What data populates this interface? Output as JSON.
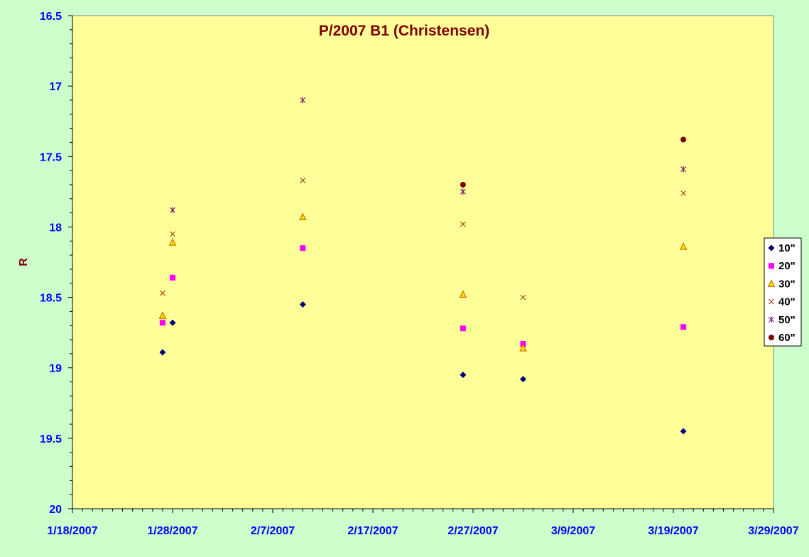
{
  "chart_data": {
    "type": "scatter",
    "title": "P/2007 B1 (Christensen)",
    "xlabel": "",
    "ylabel": "R",
    "x_axis": {
      "type": "date",
      "min": "2007-01-18",
      "max": "2007-03-29",
      "major_ticks": [
        "1/18/2007",
        "1/28/2007",
        "2/7/2007",
        "2/17/2007",
        "2/27/2007",
        "3/9/2007",
        "3/19/2007",
        "3/29/2007"
      ]
    },
    "y_axis": {
      "reversed": true,
      "min": 16.5,
      "max": 20,
      "major_ticks": [
        "16.5",
        "17",
        "17.5",
        "18",
        "18.5",
        "19",
        "19.5",
        "20"
      ]
    },
    "grid": false,
    "legend_position": "right",
    "series": [
      {
        "name": "10\"",
        "marker": "diamond",
        "color": "#000080",
        "points": [
          {
            "x": "2007-01-27",
            "y": 18.89
          },
          {
            "x": "2007-01-28",
            "y": 18.68
          },
          {
            "x": "2007-02-10",
            "y": 18.55
          },
          {
            "x": "2007-02-26",
            "y": 19.05
          },
          {
            "x": "2007-03-04",
            "y": 19.08
          },
          {
            "x": "2007-03-20",
            "y": 19.45
          }
        ]
      },
      {
        "name": "20\"",
        "marker": "square",
        "color": "#ff00ff",
        "points": [
          {
            "x": "2007-01-27",
            "y": 18.68
          },
          {
            "x": "2007-01-28",
            "y": 18.36
          },
          {
            "x": "2007-02-10",
            "y": 18.15
          },
          {
            "x": "2007-02-26",
            "y": 18.72
          },
          {
            "x": "2007-03-04",
            "y": 18.83
          },
          {
            "x": "2007-03-20",
            "y": 18.71
          }
        ]
      },
      {
        "name": "30\"",
        "marker": "triangle",
        "color": "#ffd700",
        "stroke": "#cc6600",
        "points": [
          {
            "x": "2007-01-27",
            "y": 18.63
          },
          {
            "x": "2007-01-28",
            "y": 18.11
          },
          {
            "x": "2007-02-10",
            "y": 17.93
          },
          {
            "x": "2007-02-26",
            "y": 18.48
          },
          {
            "x": "2007-03-04",
            "y": 18.86
          },
          {
            "x": "2007-03-20",
            "y": 18.14
          }
        ]
      },
      {
        "name": "40\"",
        "marker": "x",
        "color": "#993300",
        "points": [
          {
            "x": "2007-01-27",
            "y": 18.47
          },
          {
            "x": "2007-01-28",
            "y": 18.05
          },
          {
            "x": "2007-02-10",
            "y": 17.67
          },
          {
            "x": "2007-02-26",
            "y": 17.98
          },
          {
            "x": "2007-03-04",
            "y": 18.5
          },
          {
            "x": "2007-03-20",
            "y": 17.76
          }
        ]
      },
      {
        "name": "50\"",
        "marker": "star",
        "color": "#660066",
        "points": [
          {
            "x": "2007-01-28",
            "y": 17.88
          },
          {
            "x": "2007-02-10",
            "y": 17.1
          },
          {
            "x": "2007-02-26",
            "y": 17.75
          },
          {
            "x": "2007-03-20",
            "y": 17.59
          }
        ]
      },
      {
        "name": "60\"",
        "marker": "circle",
        "color": "#800000",
        "points": [
          {
            "x": "2007-02-26",
            "y": 17.7
          },
          {
            "x": "2007-03-20",
            "y": 17.38
          }
        ]
      }
    ]
  }
}
